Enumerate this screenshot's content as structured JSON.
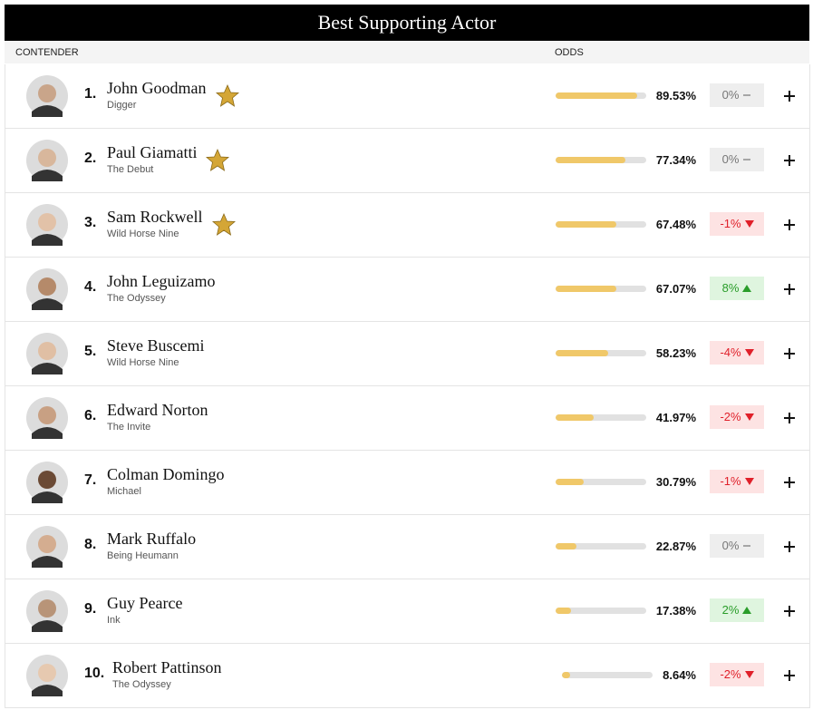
{
  "header": {
    "title": "Best Supporting Actor",
    "columns": {
      "contender": "CONTENDER",
      "odds": "ODDS"
    }
  },
  "rows": [
    {
      "rank": "1.",
      "name": "John Goodman",
      "film": "Digger",
      "star": true,
      "odds": {
        "value": 89.53,
        "label": "89.53%"
      },
      "change": {
        "value": 0,
        "label": "0%"
      }
    },
    {
      "rank": "2.",
      "name": "Paul Giamatti",
      "film": "The Debut",
      "star": true,
      "odds": {
        "value": 77.34,
        "label": "77.34%"
      },
      "change": {
        "value": 0,
        "label": "0%"
      }
    },
    {
      "rank": "3.",
      "name": "Sam Rockwell",
      "film": "Wild Horse Nine",
      "star": true,
      "odds": {
        "value": 67.48,
        "label": "67.48%"
      },
      "change": {
        "value": -1,
        "label": "-1%"
      }
    },
    {
      "rank": "4.",
      "name": "John Leguizamo",
      "film": "The Odyssey",
      "star": false,
      "odds": {
        "value": 67.07,
        "label": "67.07%"
      },
      "change": {
        "value": 8,
        "label": "8%"
      }
    },
    {
      "rank": "5.",
      "name": "Steve Buscemi",
      "film": "Wild Horse Nine",
      "star": false,
      "odds": {
        "value": 58.23,
        "label": "58.23%"
      },
      "change": {
        "value": -4,
        "label": "-4%"
      }
    },
    {
      "rank": "6.",
      "name": "Edward Norton",
      "film": "The Invite",
      "star": false,
      "odds": {
        "value": 41.97,
        "label": "41.97%"
      },
      "change": {
        "value": -2,
        "label": "-2%"
      }
    },
    {
      "rank": "7.",
      "name": "Colman Domingo",
      "film": "Michael",
      "star": false,
      "odds": {
        "value": 30.79,
        "label": "30.79%"
      },
      "change": {
        "value": -1,
        "label": "-1%"
      }
    },
    {
      "rank": "8.",
      "name": "Mark Ruffalo",
      "film": "Being Heumann",
      "star": false,
      "odds": {
        "value": 22.87,
        "label": "22.87%"
      },
      "change": {
        "value": 0,
        "label": "0%"
      }
    },
    {
      "rank": "9.",
      "name": "Guy Pearce",
      "film": "Ink",
      "star": false,
      "odds": {
        "value": 17.38,
        "label": "17.38%"
      },
      "change": {
        "value": 2,
        "label": "2%"
      }
    },
    {
      "rank": "10.",
      "name": "Robert Pattinson",
      "film": "The Odyssey",
      "star": false,
      "odds": {
        "value": 8.64,
        "label": "8.64%"
      },
      "change": {
        "value": -2,
        "label": "-2%"
      }
    }
  ]
}
